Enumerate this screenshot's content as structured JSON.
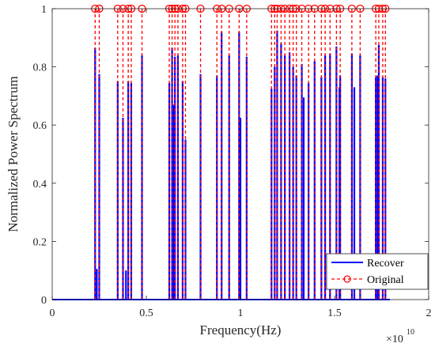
{
  "chart_data": {
    "type": "stem",
    "xlabel": "Frequency(Hz)",
    "ylabel": "Normalized Power Spectrum",
    "x_multiplier": "×10^10",
    "x_exponent_label": "10",
    "xlim": [
      0,
      2
    ],
    "ylim": [
      0,
      1
    ],
    "xticks": [
      0,
      0.5,
      1,
      1.5,
      2
    ],
    "xtick_labels": [
      "0",
      "0.5",
      "1",
      "1.5",
      "2"
    ],
    "yticks": [
      0,
      0.2,
      0.4,
      0.6,
      0.8,
      1
    ],
    "ytick_labels": [
      "0",
      "0.2",
      "0.4",
      "0.6",
      "0.8",
      "1"
    ],
    "series": [
      {
        "name": "Recover",
        "style": "solid",
        "color": "#0000ff",
        "points": [
          [
            0.228,
            0.865
          ],
          [
            0.237,
            0.105
          ],
          [
            0.25,
            0.775
          ],
          [
            0.348,
            0.75
          ],
          [
            0.376,
            0.625
          ],
          [
            0.392,
            0.1
          ],
          [
            0.404,
            0.75
          ],
          [
            0.42,
            0.745
          ],
          [
            0.477,
            0.84
          ],
          [
            0.622,
            0.745
          ],
          [
            0.637,
            0.865
          ],
          [
            0.645,
            0.67
          ],
          [
            0.652,
            0.835
          ],
          [
            0.668,
            0.84
          ],
          [
            0.693,
            0.75
          ],
          [
            0.708,
            0.55
          ],
          [
            0.788,
            0.775
          ],
          [
            0.875,
            0.77
          ],
          [
            0.9,
            0.92
          ],
          [
            0.94,
            0.84
          ],
          [
            0.993,
            0.92
          ],
          [
            1.0,
            0.625
          ],
          [
            1.033,
            0.835
          ],
          [
            1.165,
            0.725
          ],
          [
            1.182,
            0.8
          ],
          [
            1.195,
            0.925
          ],
          [
            1.216,
            0.88
          ],
          [
            1.236,
            0.84
          ],
          [
            1.261,
            0.85
          ],
          [
            1.28,
            0.8
          ],
          [
            1.297,
            0.77
          ],
          [
            1.326,
            0.81
          ],
          [
            1.336,
            0.695
          ],
          [
            1.362,
            0.745
          ],
          [
            1.394,
            0.82
          ],
          [
            1.43,
            0.765
          ],
          [
            1.45,
            0.84
          ],
          [
            1.476,
            0.845
          ],
          [
            1.51,
            0.87
          ],
          [
            1.526,
            0.73
          ],
          [
            1.53,
            0.77
          ],
          [
            1.592,
            0.845
          ],
          [
            1.605,
            0.73
          ],
          [
            1.636,
            0.84
          ],
          [
            1.719,
            0.765
          ],
          [
            1.728,
            0.77
          ],
          [
            1.735,
            0.875
          ],
          [
            1.756,
            0.765
          ],
          [
            1.77,
            0.76
          ]
        ]
      },
      {
        "name": "Original",
        "style": "dashed-circle",
        "color": "#ff0000",
        "value": 1,
        "x": [
          0.228,
          0.25,
          0.348,
          0.376,
          0.404,
          0.42,
          0.477,
          0.622,
          0.637,
          0.652,
          0.668,
          0.693,
          0.708,
          0.788,
          0.875,
          0.9,
          0.94,
          0.993,
          1.033,
          1.165,
          1.182,
          1.195,
          1.216,
          1.236,
          1.261,
          1.28,
          1.297,
          1.326,
          1.362,
          1.394,
          1.43,
          1.45,
          1.476,
          1.51,
          1.53,
          1.592,
          1.636,
          1.719,
          1.735,
          1.756,
          1.77
        ]
      }
    ],
    "legend": {
      "position": "bottom-right",
      "entries": [
        "Recover",
        "Original"
      ]
    }
  }
}
